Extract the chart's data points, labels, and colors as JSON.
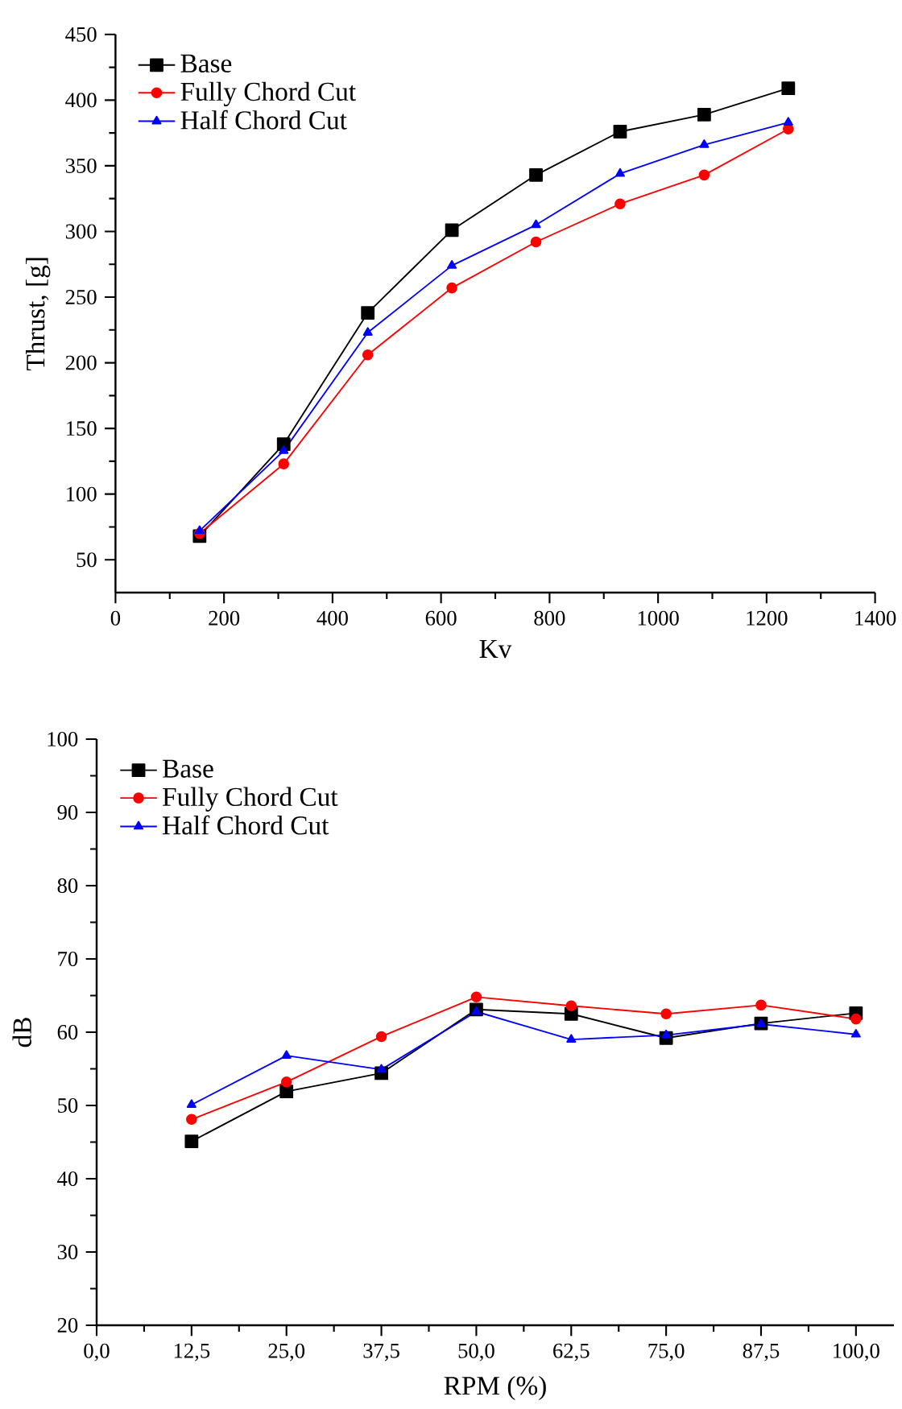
{
  "chart_data": [
    {
      "type": "line",
      "xlabel": "Kv",
      "ylabel": "Thrust, [g]",
      "xlim": [
        0,
        1400
      ],
      "ylim": [
        25,
        450
      ],
      "xticks": [
        0,
        200,
        400,
        600,
        800,
        1000,
        1200,
        1400
      ],
      "yticks": [
        50,
        100,
        150,
        200,
        250,
        300,
        350,
        400,
        450
      ],
      "legend": "top left",
      "grid": false,
      "line_style": "solid",
      "series": [
        {
          "name": "Base",
          "color": "#000000",
          "marker": "square",
          "x": [
            155,
            310,
            465,
            620,
            775,
            930,
            1085,
            1240
          ],
          "values": [
            68,
            138,
            238,
            301,
            343,
            376,
            389,
            409
          ]
        },
        {
          "name": "Fully Chord Cut",
          "color": "#ff0000",
          "marker": "circle",
          "x": [
            155,
            310,
            465,
            620,
            775,
            930,
            1085,
            1240
          ],
          "values": [
            70,
            123,
            206,
            257,
            292,
            321,
            343,
            378
          ]
        },
        {
          "name": "Half Chord Cut",
          "color": "#0000ff",
          "marker": "triangle",
          "x": [
            155,
            310,
            465,
            620,
            775,
            930,
            1085,
            1240
          ],
          "values": [
            72,
            133,
            223,
            274,
            305,
            344,
            366,
            383
          ]
        }
      ]
    },
    {
      "type": "line",
      "xlabel": "RPM (%)",
      "ylabel": "dB",
      "xlim": [
        0,
        105
      ],
      "ylim": [
        20,
        100
      ],
      "xticks": [
        {
          "value": 0,
          "label": "0,0"
        },
        {
          "value": 12.5,
          "label": "12,5"
        },
        {
          "value": 25,
          "label": "25,0"
        },
        {
          "value": 37.5,
          "label": "37,5"
        },
        {
          "value": 50,
          "label": "50,0"
        },
        {
          "value": 62.5,
          "label": "62,5"
        },
        {
          "value": 75,
          "label": "75,0"
        },
        {
          "value": 87.5,
          "label": "87,5"
        },
        {
          "value": 100,
          "label": "100,0"
        }
      ],
      "yticks": [
        20,
        30,
        40,
        50,
        60,
        70,
        80,
        90,
        100
      ],
      "legend": "top left",
      "grid": false,
      "line_style": "solid",
      "series": [
        {
          "name": "Base",
          "color": "#000000",
          "marker": "square",
          "x": [
            12.5,
            25,
            37.5,
            50,
            62.5,
            75,
            87.5,
            100
          ],
          "values": [
            45.1,
            51.9,
            54.4,
            63.1,
            62.5,
            59.2,
            61.2,
            62.6
          ]
        },
        {
          "name": "Fully Chord Cut",
          "color": "#ff0000",
          "marker": "circle",
          "x": [
            12.5,
            25,
            37.5,
            50,
            62.5,
            75,
            87.5,
            100
          ],
          "values": [
            48.1,
            53.2,
            59.4,
            64.8,
            63.6,
            62.5,
            63.7,
            61.8
          ]
        },
        {
          "name": "Half Chord Cut",
          "color": "#0000ff",
          "marker": "triangle",
          "x": [
            12.5,
            25,
            37.5,
            50,
            62.5,
            75,
            87.5,
            100
          ],
          "values": [
            50.1,
            56.8,
            54.9,
            62.8,
            59.0,
            59.6,
            61.1,
            59.7
          ]
        }
      ]
    }
  ]
}
